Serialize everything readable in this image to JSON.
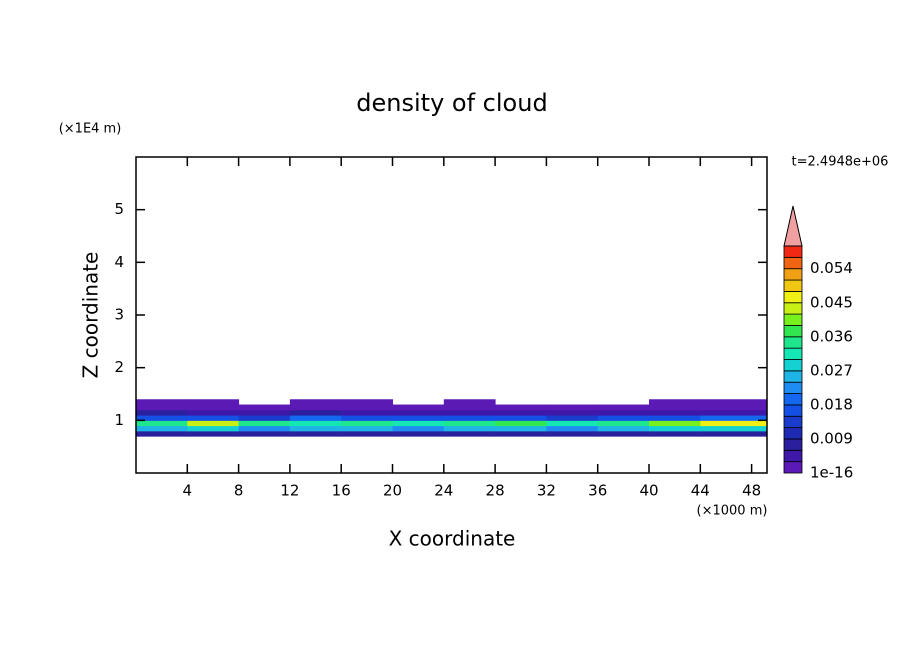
{
  "chart_data": {
    "type": "contour",
    "title": "density of cloud",
    "x_label": "X coordinate",
    "y_label": "Z coordinate",
    "x_unit": "(×1000 m)",
    "y_unit": "(×1E4 m)",
    "time_label": "t=2.4948e+06",
    "xlim": [
      0,
      49.2
    ],
    "ylim": [
      0,
      6
    ],
    "xticks": [
      4,
      8,
      12,
      16,
      20,
      24,
      28,
      32,
      36,
      40,
      44,
      48
    ],
    "yticks": [
      1,
      2,
      3,
      4,
      5
    ],
    "x": [
      2,
      6,
      10,
      14,
      18,
      22,
      26,
      30,
      34,
      38,
      42,
      46
    ],
    "z": [
      0.75,
      0.85,
      0.95,
      1.05,
      1.15,
      1.25,
      1.35
    ],
    "z_values": [
      [
        0.008,
        0.009,
        0.008,
        0.008,
        0.009,
        0.008,
        0.008,
        0.009,
        0.008,
        0.008,
        0.009,
        0.008
      ],
      [
        0.024,
        0.028,
        0.022,
        0.025,
        0.024,
        0.023,
        0.026,
        0.024,
        0.022,
        0.025,
        0.027,
        0.029
      ],
      [
        0.036,
        0.042,
        0.033,
        0.03,
        0.034,
        0.032,
        0.035,
        0.038,
        0.031,
        0.033,
        0.04,
        0.046
      ],
      [
        0.016,
        0.018,
        0.014,
        0.02,
        0.017,
        0.015,
        0.016,
        0.018,
        0.014,
        0.015,
        0.017,
        0.019
      ],
      [
        0.006,
        0.005,
        0.004,
        0.006,
        0.005,
        0.004,
        0.005,
        0.005,
        0.004,
        0.004,
        0.004,
        0.005
      ],
      [
        0.002,
        0.002,
        0.001,
        0.002,
        0.002,
        0.001,
        0.002,
        0.001,
        0.001,
        0.001,
        0.001,
        0.002
      ],
      [
        0.001,
        0.001,
        null,
        0.0005,
        0.001,
        null,
        0.001,
        null,
        null,
        null,
        0.0005,
        0.001
      ]
    ],
    "clim": [
      0,
      0.06
    ],
    "colors": [
      "#5b1ab5",
      "#3e18a8",
      "#2a209e",
      "#1e2ab4",
      "#1a3ccd",
      "#1450e6",
      "#1468f0",
      "#1e8cf0",
      "#1eb4e6",
      "#14d2d2",
      "#14e6b4",
      "#1ee68c",
      "#32e650",
      "#78f01e",
      "#c8f014",
      "#f0f014",
      "#f0c814",
      "#f0a014",
      "#f06414",
      "#f02814"
    ],
    "extend_color": "#f0a0a0",
    "cticks": [
      1e-16,
      0.009,
      0.018,
      0.027,
      0.036,
      0.045,
      0.054
    ]
  }
}
